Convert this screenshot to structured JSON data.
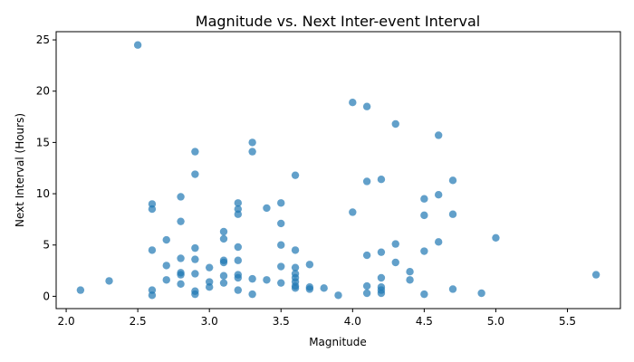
{
  "chart_data": {
    "type": "scatter",
    "title": "Magnitude vs. Next Inter-event Interval",
    "xlabel": "Magnitude",
    "ylabel": "Next Interval (Hours)",
    "xlim": [
      1.93,
      5.87
    ],
    "ylim": [
      -1.2,
      25.8
    ],
    "xticks": [
      "2.0",
      "2.5",
      "3.0",
      "3.5",
      "4.0",
      "4.5",
      "5.0",
      "5.5"
    ],
    "yticks": [
      "0",
      "5",
      "10",
      "15",
      "20",
      "25"
    ],
    "grid": false,
    "color": "#1f77b4",
    "points": [
      [
        2.1,
        0.6
      ],
      [
        2.3,
        1.5
      ],
      [
        2.5,
        24.5
      ],
      [
        2.6,
        9.0
      ],
      [
        2.6,
        8.5
      ],
      [
        2.6,
        4.5
      ],
      [
        2.6,
        0.6
      ],
      [
        2.6,
        0.1
      ],
      [
        2.7,
        5.5
      ],
      [
        2.7,
        3.0
      ],
      [
        2.7,
        1.6
      ],
      [
        2.8,
        9.7
      ],
      [
        2.8,
        7.3
      ],
      [
        2.8,
        3.7
      ],
      [
        2.8,
        2.3
      ],
      [
        2.8,
        2.1
      ],
      [
        2.8,
        1.2
      ],
      [
        2.9,
        14.1
      ],
      [
        2.9,
        11.9
      ],
      [
        2.9,
        4.7
      ],
      [
        2.9,
        3.6
      ],
      [
        2.9,
        2.2
      ],
      [
        2.9,
        0.5
      ],
      [
        2.9,
        0.2
      ],
      [
        3.0,
        2.8
      ],
      [
        3.0,
        1.4
      ],
      [
        3.0,
        0.9
      ],
      [
        3.1,
        6.3
      ],
      [
        3.1,
        5.6
      ],
      [
        3.1,
        3.5
      ],
      [
        3.1,
        3.3
      ],
      [
        3.1,
        2.0
      ],
      [
        3.1,
        1.3
      ],
      [
        3.2,
        9.1
      ],
      [
        3.2,
        8.5
      ],
      [
        3.2,
        8.0
      ],
      [
        3.2,
        4.8
      ],
      [
        3.2,
        3.5
      ],
      [
        3.2,
        2.1
      ],
      [
        3.2,
        1.8
      ],
      [
        3.2,
        0.6
      ],
      [
        3.3,
        15.0
      ],
      [
        3.3,
        14.1
      ],
      [
        3.3,
        1.7
      ],
      [
        3.3,
        0.2
      ],
      [
        3.4,
        8.6
      ],
      [
        3.4,
        1.6
      ],
      [
        3.5,
        9.1
      ],
      [
        3.5,
        7.1
      ],
      [
        3.5,
        5.0
      ],
      [
        3.5,
        2.9
      ],
      [
        3.5,
        1.3
      ],
      [
        3.6,
        11.8
      ],
      [
        3.6,
        4.5
      ],
      [
        3.6,
        2.8
      ],
      [
        3.6,
        2.2
      ],
      [
        3.6,
        1.8
      ],
      [
        3.6,
        1.4
      ],
      [
        3.6,
        1.0
      ],
      [
        3.6,
        0.8
      ],
      [
        3.7,
        3.1
      ],
      [
        3.7,
        0.9
      ],
      [
        3.7,
        0.7
      ],
      [
        3.8,
        0.8
      ],
      [
        3.9,
        0.1
      ],
      [
        4.0,
        18.9
      ],
      [
        4.0,
        8.2
      ],
      [
        4.1,
        18.5
      ],
      [
        4.1,
        11.2
      ],
      [
        4.1,
        4.0
      ],
      [
        4.1,
        1.0
      ],
      [
        4.1,
        0.3
      ],
      [
        4.2,
        11.4
      ],
      [
        4.2,
        4.3
      ],
      [
        4.2,
        1.8
      ],
      [
        4.2,
        0.9
      ],
      [
        4.2,
        0.6
      ],
      [
        4.2,
        0.3
      ],
      [
        4.3,
        16.8
      ],
      [
        4.3,
        5.1
      ],
      [
        4.3,
        3.3
      ],
      [
        4.4,
        2.4
      ],
      [
        4.4,
        1.6
      ],
      [
        4.5,
        9.5
      ],
      [
        4.5,
        7.9
      ],
      [
        4.5,
        4.4
      ],
      [
        4.5,
        0.2
      ],
      [
        4.6,
        15.7
      ],
      [
        4.6,
        9.9
      ],
      [
        4.6,
        5.3
      ],
      [
        4.7,
        11.3
      ],
      [
        4.7,
        8.0
      ],
      [
        4.7,
        0.7
      ],
      [
        4.9,
        0.3
      ],
      [
        5.0,
        5.7
      ],
      [
        5.7,
        2.1
      ]
    ]
  }
}
